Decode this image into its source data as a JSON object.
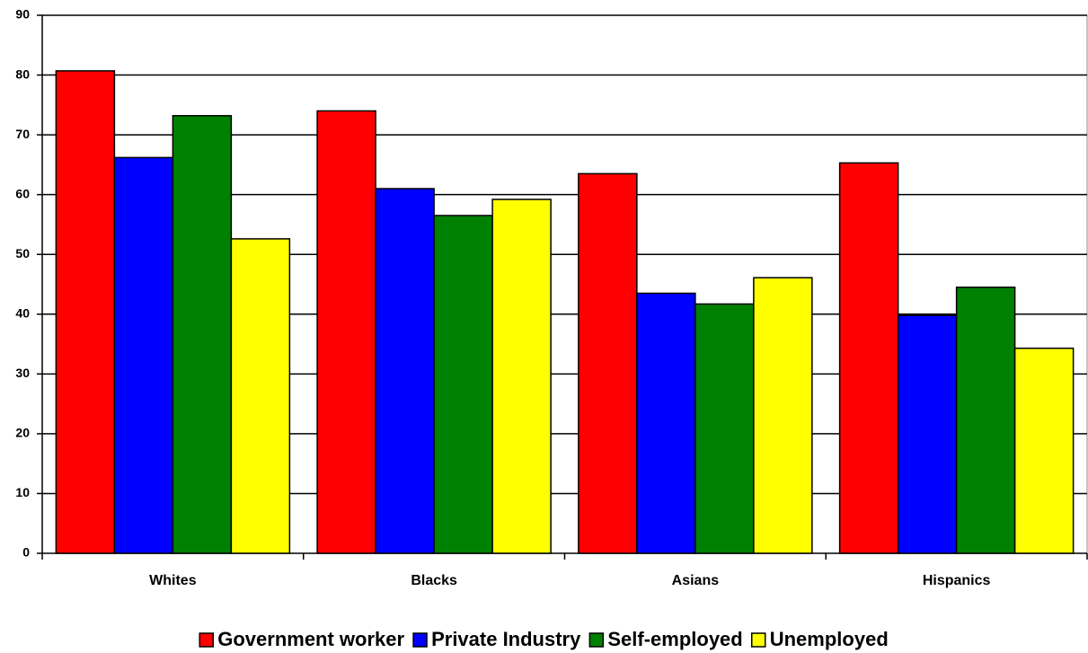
{
  "chart_data": {
    "type": "bar",
    "categories": [
      "Whites",
      "Blacks",
      "Asians",
      "Hispanics"
    ],
    "series": [
      {
        "name": "Government worker",
        "color": "#ff0000",
        "values": [
          80.7,
          74.0,
          63.5,
          65.3
        ]
      },
      {
        "name": "Private Industry",
        "color": "#0000ff",
        "values": [
          66.2,
          61.0,
          43.5,
          39.8
        ]
      },
      {
        "name": "Self-employed",
        "color": "#008000",
        "values": [
          73.2,
          56.5,
          41.7,
          44.5
        ]
      },
      {
        "name": "Unemployed",
        "color": "#ffff00",
        "values": [
          52.6,
          59.2,
          46.1,
          34.3
        ]
      }
    ],
    "ylim": [
      0,
      90
    ],
    "yticks": [
      0,
      10,
      20,
      30,
      40,
      50,
      60,
      70,
      80,
      90
    ],
    "grid": true,
    "legend": "bottom"
  }
}
